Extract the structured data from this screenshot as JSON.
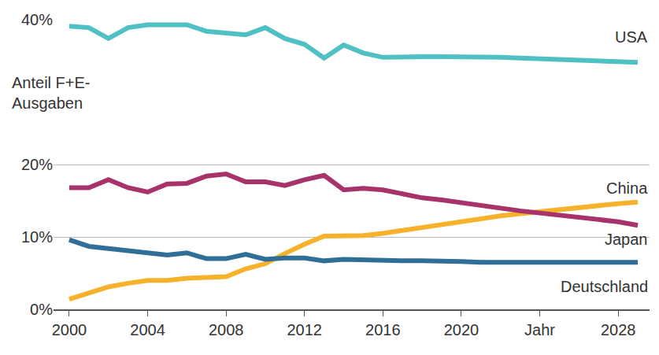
{
  "chart_data": {
    "type": "line",
    "y_label_lines": [
      "Anteil F+E-",
      "Ausgaben"
    ],
    "x": [
      2000,
      2001,
      2002,
      2003,
      2004,
      2005,
      2006,
      2007,
      2008,
      2009,
      2010,
      2011,
      2012,
      2013,
      2014,
      2015,
      2016,
      2017,
      2018,
      2019,
      2020,
      2021,
      2022,
      2023,
      2024,
      2025,
      2026,
      2027,
      2028,
      2029
    ],
    "series": [
      {
        "name": "USA",
        "color": "#4fc1c4",
        "values": [
          39.1,
          38.9,
          37.4,
          38.9,
          39.3,
          39.3,
          39.3,
          38.4,
          38.1,
          37.9,
          38.9,
          37.4,
          36.6,
          34.7,
          36.5,
          35.4,
          34.8,
          34.9,
          34.9,
          34.9,
          34.9,
          34.9,
          34.8,
          34.7,
          34.6,
          34.5,
          34.4,
          34.3,
          34.2,
          34.1
        ]
      },
      {
        "name": "China",
        "color": "#f6b22b",
        "values": [
          1.4,
          2.2,
          3.1,
          3.6,
          4.0,
          4.0,
          4.3,
          4.4,
          4.5,
          5.6,
          6.3,
          7.7,
          9.0,
          10.1,
          10.2,
          10.2,
          10.5,
          10.9,
          11.3,
          11.8,
          12.2,
          12.5,
          12.9,
          13.2,
          13.5,
          13.8,
          14.1,
          14.4,
          14.6,
          14.8
        ]
      },
      {
        "name": "Japan",
        "color": "#a8336a",
        "values": [
          16.8,
          16.8,
          17.9,
          16.8,
          16.2,
          17.3,
          17.4,
          18.4,
          18.7,
          17.6,
          17.6,
          17.1,
          17.9,
          18.5,
          16.5,
          16.7,
          16.5,
          15.9,
          15.4,
          15.1,
          14.7,
          14.3,
          14.0,
          13.6,
          13.3,
          13.0,
          12.6,
          12.3,
          12.1,
          11.6
        ]
      },
      {
        "name": "Deutschland",
        "color": "#2f6f97",
        "values": [
          9.6,
          8.7,
          8.4,
          8.1,
          7.9,
          7.5,
          7.8,
          7.0,
          7.0,
          7.6,
          6.9,
          7.1,
          7.1,
          6.7,
          6.9,
          6.8,
          6.7,
          6.7,
          6.7,
          6.7,
          6.6,
          6.5,
          6.5,
          6.5,
          6.5,
          6.5,
          6.5,
          6.5,
          6.5,
          6.5
        ]
      }
    ],
    "xlim": [
      1999.2,
      2029.6
    ],
    "xticks": [
      2000,
      2004,
      2008,
      2012,
      2016,
      2020,
      {
        "value": 2024,
        "label": "Jahr"
      },
      2028
    ],
    "ylim": [
      0,
      40
    ],
    "yticks": [
      {
        "value": 0,
        "label": "0%"
      },
      {
        "value": 10,
        "label": "10%"
      },
      {
        "value": 20,
        "label": "20%"
      },
      {
        "value": 40,
        "label": "40%"
      }
    ],
    "grid": true
  }
}
